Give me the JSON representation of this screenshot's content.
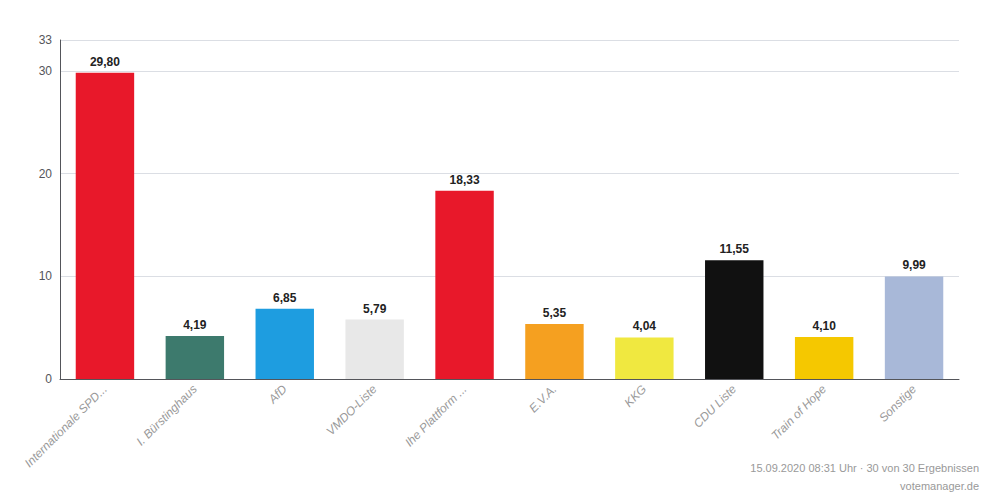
{
  "chart_data": {
    "type": "bar",
    "categories": [
      "Internationale SPD...",
      "I. Bürstinghaus",
      "AfD",
      "VMDO-Liste",
      "Ihe Plattform ...",
      "E.V.A.",
      "KKG",
      "CDU Liste",
      "Train of Hope",
      "Sonstige"
    ],
    "values": [
      29.8,
      4.19,
      6.85,
      5.79,
      18.33,
      5.35,
      4.04,
      11.55,
      4.1,
      9.99
    ],
    "value_labels": [
      "29,80",
      "4,19",
      "6,85",
      "5,79",
      "18,33",
      "5,35",
      "4,04",
      "11,55",
      "4,10",
      "9,99"
    ],
    "colors": [
      "#e8182a",
      "#3d7a6d",
      "#1e9de0",
      "#e8e8e8",
      "#e8182a",
      "#f5a020",
      "#f0e840",
      "#111111",
      "#f5c800",
      "#a8b8d8"
    ],
    "ylim": [
      0,
      33
    ],
    "yticks": [
      0,
      10,
      20,
      30
    ],
    "grid": true,
    "data_labels": true,
    "annotations": [
      "15.09.2020 08:31 Uhr · 30 von 30 Ergebnissen",
      "votemanager.de"
    ]
  }
}
